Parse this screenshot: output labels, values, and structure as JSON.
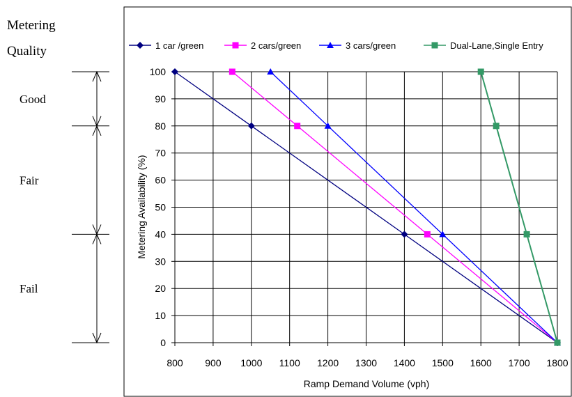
{
  "quality_panel": {
    "heading_line1": "Metering",
    "heading_line2": "Quality",
    "bands": [
      {
        "label": "Good",
        "from": 80,
        "to": 100
      },
      {
        "label": "Fair",
        "from": 40,
        "to": 80
      },
      {
        "label": "Fail",
        "from": 0,
        "to": 40
      }
    ]
  },
  "chart_data": {
    "type": "line",
    "title": "",
    "xlabel": "Ramp Demand Volume (vph)",
    "ylabel": "Metering Availability (%)",
    "xlim": [
      800,
      1800
    ],
    "ylim": [
      0,
      100
    ],
    "xticks": [
      800,
      900,
      1000,
      1100,
      1200,
      1300,
      1400,
      1500,
      1600,
      1700,
      1800
    ],
    "yticks": [
      0,
      10,
      20,
      30,
      40,
      50,
      60,
      70,
      80,
      90,
      100
    ],
    "grid": true,
    "legend_position": "top",
    "series": [
      {
        "name": "1 car /green",
        "color": "#000080",
        "marker": "diamond",
        "x": [
          800,
          1000,
          1400,
          1800
        ],
        "y": [
          100,
          80,
          40,
          0
        ]
      },
      {
        "name": "2 cars/green",
        "color": "#ff00ff",
        "marker": "square",
        "x": [
          950,
          1120,
          1460,
          1800
        ],
        "y": [
          100,
          80,
          40,
          0
        ]
      },
      {
        "name": "3 cars/green",
        "color": "#0000ff",
        "marker": "triangle",
        "x": [
          1050,
          1200,
          1500,
          1800
        ],
        "y": [
          100,
          80,
          40,
          0
        ]
      },
      {
        "name": "Dual-Lane,Single Entry",
        "color": "#339966",
        "marker": "square",
        "x": [
          1600,
          1640,
          1720,
          1800
        ],
        "y": [
          100,
          80,
          40,
          0
        ]
      }
    ]
  }
}
